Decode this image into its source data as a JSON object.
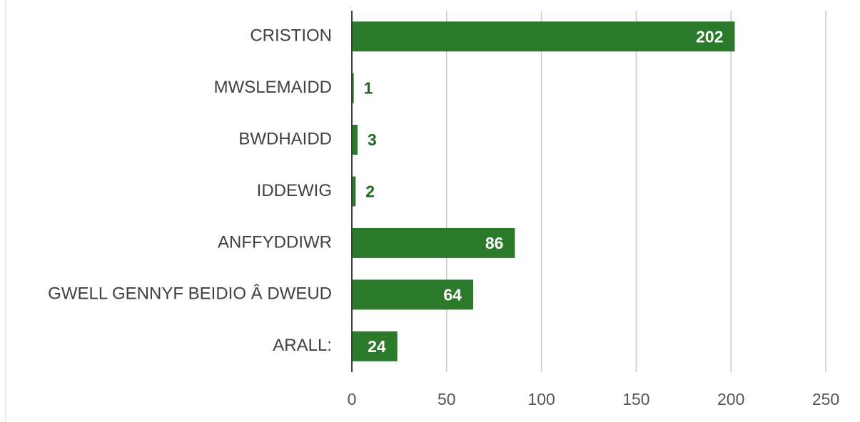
{
  "chart_data": {
    "type": "bar",
    "orientation": "horizontal",
    "categories": [
      "CRISTION",
      "MWSLEMAIDD",
      "BWDHAIDD",
      "IDDEWIG",
      "ANFFYDDIWR",
      "GWELL GENNYF BEIDIO Â DWEUD",
      "ARALL:"
    ],
    "values": [
      202,
      1,
      3,
      2,
      86,
      64,
      24
    ],
    "color": "#2b7a2b",
    "xlim": [
      0,
      250
    ],
    "xticks": [
      0,
      50,
      100,
      150,
      200,
      250
    ],
    "grid": true
  }
}
